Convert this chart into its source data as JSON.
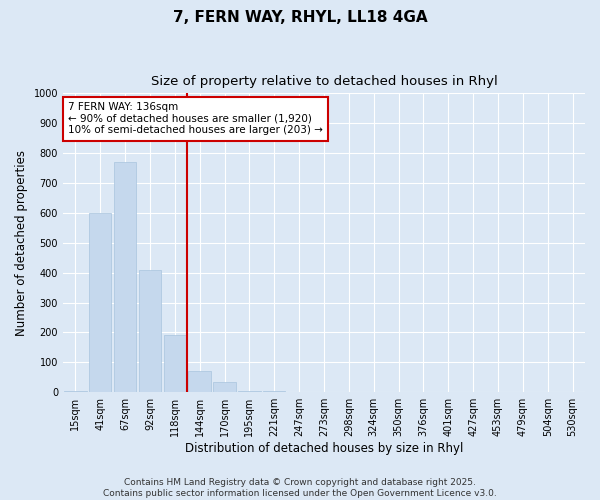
{
  "title_line1": "7, FERN WAY, RHYL, LL18 4GA",
  "title_line2": "Size of property relative to detached houses in Rhyl",
  "xlabel": "Distribution of detached houses by size in Rhyl",
  "ylabel": "Number of detached properties",
  "categories": [
    "15sqm",
    "41sqm",
    "67sqm",
    "92sqm",
    "118sqm",
    "144sqm",
    "170sqm",
    "195sqm",
    "221sqm",
    "247sqm",
    "273sqm",
    "298sqm",
    "324sqm",
    "350sqm",
    "376sqm",
    "401sqm",
    "427sqm",
    "453sqm",
    "479sqm",
    "504sqm",
    "530sqm"
  ],
  "values": [
    5,
    600,
    770,
    410,
    190,
    70,
    35,
    5,
    5,
    0,
    0,
    0,
    0,
    0,
    0,
    0,
    0,
    0,
    0,
    0,
    0
  ],
  "bar_color": "#c5d8ed",
  "bar_edgecolor": "#a8c4de",
  "vline_x_index": 4.5,
  "vline_color": "#cc0000",
  "ylim": [
    0,
    1000
  ],
  "yticks": [
    0,
    100,
    200,
    300,
    400,
    500,
    600,
    700,
    800,
    900,
    1000
  ],
  "annotation_text": "7 FERN WAY: 136sqm\n← 90% of detached houses are smaller (1,920)\n10% of semi-detached houses are larger (203) →",
  "annotation_box_color": "#ffffff",
  "annotation_box_edgecolor": "#cc0000",
  "background_color": "#dce8f5",
  "plot_bg_color": "#dce8f5",
  "footer_text": "Contains HM Land Registry data © Crown copyright and database right 2025.\nContains public sector information licensed under the Open Government Licence v3.0.",
  "title_fontsize": 11,
  "subtitle_fontsize": 9.5,
  "axis_label_fontsize": 8.5,
  "tick_fontsize": 7,
  "annotation_fontsize": 7.5,
  "footer_fontsize": 6.5
}
